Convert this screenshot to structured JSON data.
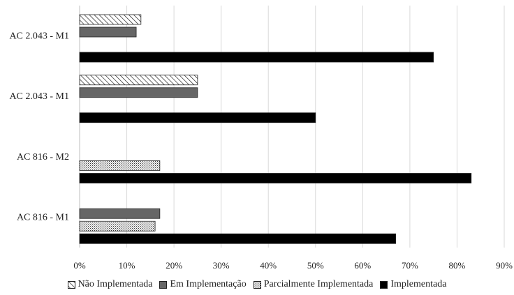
{
  "chart_data": {
    "type": "bar",
    "orientation": "horizontal",
    "categories": [
      "AC 2.043 - M1",
      "AC 2.043 - M1",
      "AC 816 - M2",
      "AC 816 - M1"
    ],
    "series": [
      {
        "name": "Não Implementada",
        "values": [
          13,
          25,
          0,
          0
        ],
        "color": "#ffffff",
        "pattern": "diagonal-hatch"
      },
      {
        "name": "Em Implementação",
        "values": [
          12,
          25,
          0,
          17
        ],
        "color": "#666666",
        "pattern": "solid"
      },
      {
        "name": "Parcialmente Implementada",
        "values": [
          0,
          0,
          17,
          16
        ],
        "color": "#e0e0e0",
        "pattern": "dots"
      },
      {
        "name": "Implementada",
        "values": [
          75,
          50,
          83,
          67
        ],
        "color": "#000000",
        "pattern": "solid"
      }
    ],
    "xlim": [
      0,
      90
    ],
    "xticks": [
      "0%",
      "10%",
      "20%",
      "30%",
      "40%",
      "50%",
      "60%",
      "70%",
      "80%",
      "90%"
    ],
    "grid": "vertical",
    "legend_position": "bottom"
  }
}
